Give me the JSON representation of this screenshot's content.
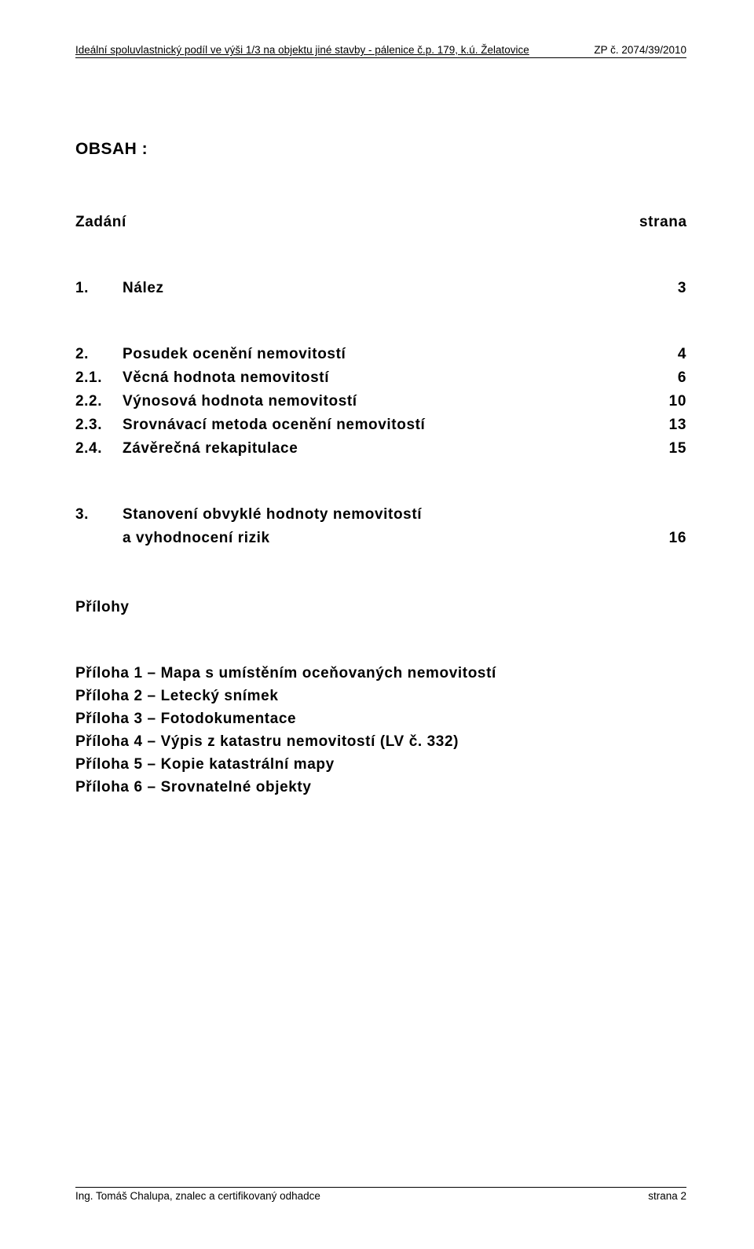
{
  "header": {
    "left": "Ideální spoluvlastnický podíl ve výši 1/3 na objektu jiné stavby - pálenice č.p. 179, k.ú. Želatovice",
    "right": "ZP č. 2074/39/2010"
  },
  "title": "OBSAH :",
  "toc": {
    "head": {
      "label": "Zadání",
      "page": "strana"
    },
    "block1": [
      {
        "num": "1.",
        "label": "Nález",
        "page": "3"
      }
    ],
    "block2": [
      {
        "num": "2.",
        "label": "Posudek ocenění nemovitostí",
        "page": "4"
      },
      {
        "num": "2.1.",
        "label": "Věcná hodnota nemovitostí",
        "page": "6"
      },
      {
        "num": "2.2.",
        "label": "Výnosová hodnota nemovitostí",
        "page": "10"
      },
      {
        "num": "2.3.",
        "label": "Srovnávací metoda ocenění nemovitostí",
        "page": "13"
      },
      {
        "num": "2.4.",
        "label": "Závěrečná rekapitulace",
        "page": "15"
      }
    ],
    "block3": [
      {
        "num": "3.",
        "label": "Stanovení obvyklé hodnoty nemovitostí",
        "page": ""
      },
      {
        "num": "",
        "label": "a vyhodnocení rizik",
        "page": "16"
      }
    ]
  },
  "attachments": {
    "heading": "Přílohy",
    "items": [
      "Příloha 1 – Mapa s umístěním oceňovaných nemovitostí",
      "Příloha 2 – Letecký snímek",
      "Příloha 3 – Fotodokumentace",
      "Příloha 4 – Výpis z katastru nemovitostí (LV č. 332)",
      "Příloha 5 – Kopie katastrální mapy",
      "Příloha 6 – Srovnatelné objekty"
    ]
  },
  "footer": {
    "left": "Ing. Tomáš Chalupa, znalec a certifikovaný odhadce",
    "right": "strana 2"
  }
}
